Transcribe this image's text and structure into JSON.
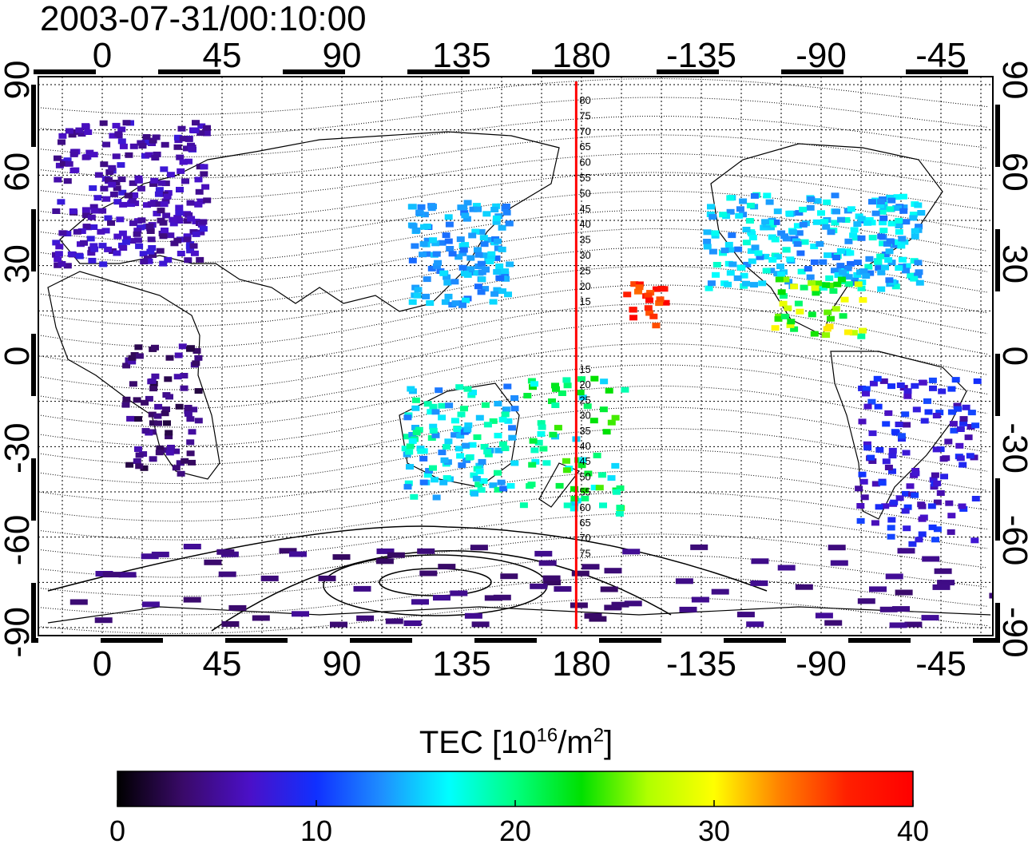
{
  "header": {
    "timestamp": "2003-07-31/00:10:00"
  },
  "map": {
    "x_tick_labels": [
      "0",
      "45",
      "90",
      "135",
      "180",
      "-135",
      "-90",
      "-45"
    ],
    "y_tick_labels": [
      "90",
      "60",
      "30",
      "0",
      "-30",
      "-60",
      "-90"
    ],
    "meridian_labels_top": [
      "80",
      "75",
      "70",
      "65",
      "60",
      "55",
      "50",
      "45",
      "40",
      "35",
      "30",
      "25",
      "20",
      "15"
    ],
    "meridian_labels_bottom": [
      "15",
      "20",
      "25",
      "30",
      "35",
      "40",
      "45",
      "50",
      "55",
      "60",
      "65",
      "70",
      "75"
    ],
    "marker_line_color": "#ff0000",
    "marker_line_longitude": 178,
    "background_color": "#ffffff"
  },
  "colorbar": {
    "label_main": "TEC  [10",
    "label_exp1": "16",
    "label_mid": "/m",
    "label_exp2": "2",
    "label_end": "]",
    "ticks": [
      "0",
      "10",
      "20",
      "30",
      "40"
    ],
    "min": 0,
    "max": 40,
    "colors": [
      "#000000",
      "#3a0a6a",
      "#4b10c8",
      "#1030ff",
      "#1e90ff",
      "#00ffff",
      "#00ff80",
      "#00e000",
      "#b0ff00",
      "#ffff00",
      "#ff8000",
      "#ff2000",
      "#ff0000"
    ]
  },
  "tec_clusters": [
    {
      "region": "europe",
      "value": 6
    },
    {
      "region": "east-asia",
      "value": 14
    },
    {
      "region": "north-america",
      "value": 15
    },
    {
      "region": "central-america",
      "value": 25
    },
    {
      "region": "pacific-hawaii",
      "value": 37
    },
    {
      "region": "australia",
      "value": 16
    },
    {
      "region": "new-zealand",
      "value": 20
    },
    {
      "region": "south-america",
      "value": 8
    },
    {
      "region": "africa",
      "value": 4
    },
    {
      "region": "antarctic",
      "value": 4
    }
  ]
}
